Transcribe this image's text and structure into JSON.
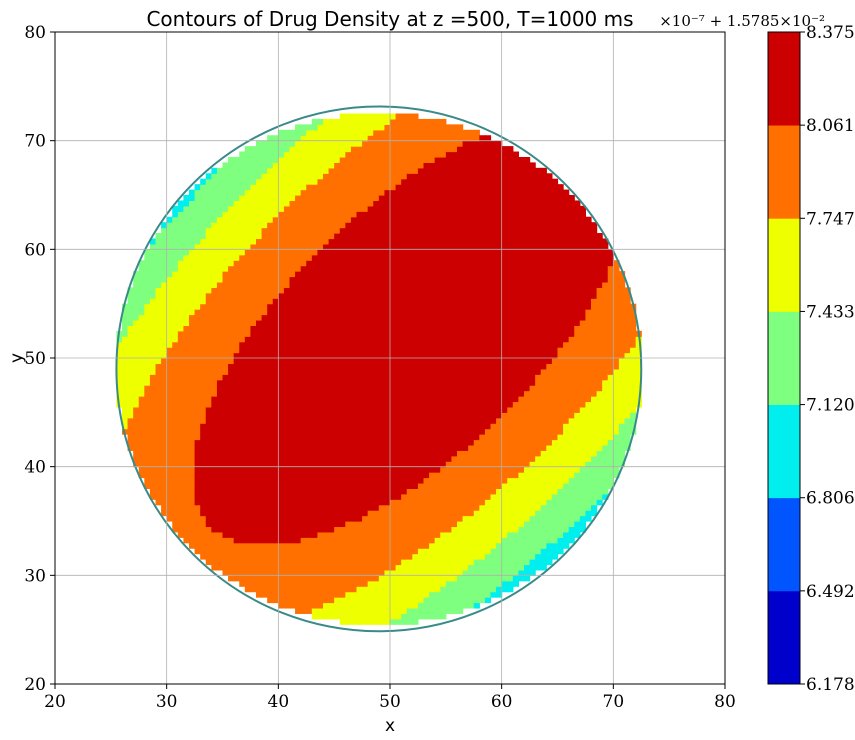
{
  "chart_data": {
    "type": "contour",
    "title": "Contours of Drug Density at z =500, T=1000 ms",
    "xlabel": "x",
    "ylabel": "y",
    "xlim": [
      20,
      80
    ],
    "ylim": [
      20,
      80
    ],
    "xticks": [
      "20",
      "30",
      "40",
      "50",
      "60",
      "70",
      "80"
    ],
    "yticks": [
      "20",
      "30",
      "40",
      "50",
      "60",
      "70",
      "80"
    ],
    "grid": true,
    "domain": {
      "shape": "circle",
      "center": [
        49,
        49
      ],
      "radius": 23.5
    },
    "colorbar": {
      "offset_text": "×10⁻⁷ + 1.5785×10⁻²",
      "tick_labels": [
        "6.178",
        "6.492",
        "6.806",
        "7.120",
        "7.433",
        "7.747",
        "8.061",
        "8.375"
      ],
      "levels": [
        6.178,
        6.492,
        6.806,
        7.12,
        7.433,
        7.747,
        8.061,
        8.375
      ],
      "colors": [
        "#0000cc",
        "#0055ff",
        "#00eeee",
        "#7fff7f",
        "#eeff00",
        "#ff7000",
        "#cc0000"
      ]
    },
    "field": {
      "peak_center": [
        52,
        52.5
      ],
      "peak_value": 8.36,
      "gradient_direction": "decreasing toward lower-right",
      "contour_line_color": "#3a8a8a"
    }
  }
}
